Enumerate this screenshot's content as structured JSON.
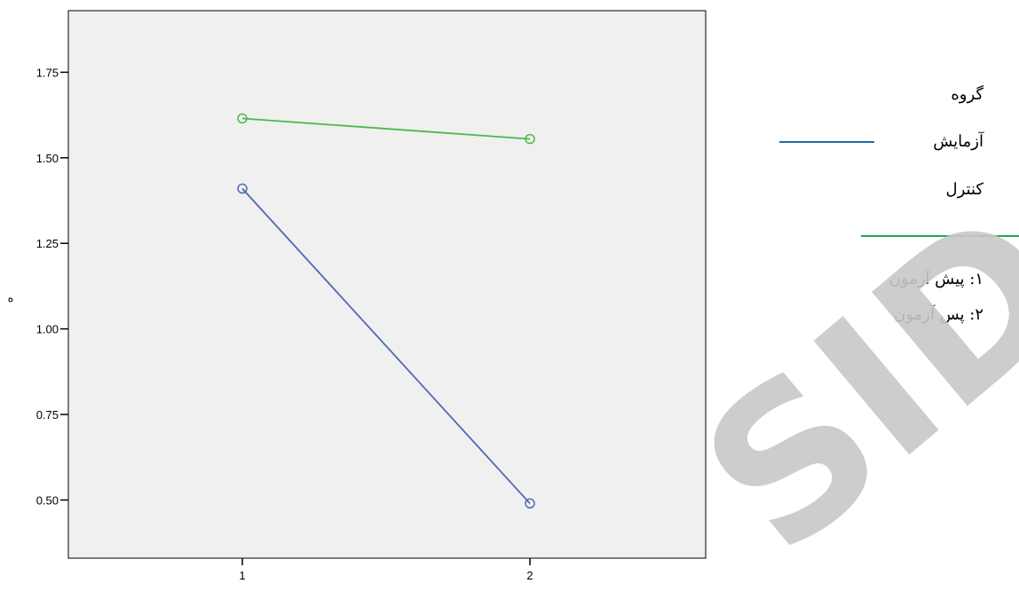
{
  "chart_data": {
    "type": "line",
    "x": [
      "1",
      "2"
    ],
    "ylim": [
      0.33,
      1.93
    ],
    "yticks": [
      "1.75",
      "1.50",
      "1.25",
      "1.00",
      "0.75",
      "0.50"
    ],
    "ylabel": "ﻩ",
    "grid": false,
    "background": "#f0f0f0",
    "series": [
      {
        "name": "آزمایش",
        "color": "#5068b5",
        "values": [
          1.41,
          0.49
        ]
      },
      {
        "name": "کنترل",
        "color": "#4cb84c",
        "values": [
          1.615,
          1.555
        ]
      }
    ]
  },
  "legend": {
    "title": "گروه",
    "items": [
      {
        "label": "آزمایش",
        "color": "#1f6fa8"
      },
      {
        "label": "کنترل",
        "color": "#2aa84a"
      }
    ],
    "notes": [
      "۱: پیش آزمون",
      "۲: پس آزمون"
    ]
  },
  "watermark": "SID"
}
